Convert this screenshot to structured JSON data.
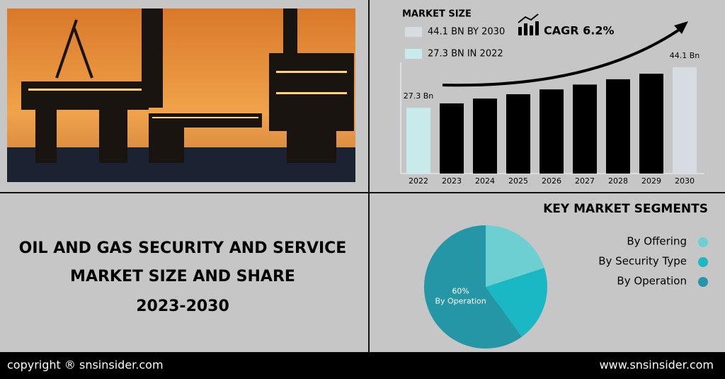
{
  "header": {
    "title_lines": [
      "OIL AND GAS SECURITY AND SERVICE",
      "MARKET SIZE AND SHARE",
      "2023-2030"
    ]
  },
  "footer": {
    "left": "copyright ® snsinsider.com",
    "right": "www.snsinsider.com"
  },
  "chart_data": [
    {
      "type": "bar",
      "title": "MARKET SIZE",
      "annotation": "CAGR 6.2%",
      "legend": [
        {
          "label": "44.1 BN BY 2030",
          "color": "#d6dce2"
        },
        {
          "label": "27.3 BN IN 2022",
          "color": "#c8eaea"
        }
      ],
      "categories": [
        "2022",
        "2023",
        "2024",
        "2025",
        "2026",
        "2027",
        "2028",
        "2029",
        "2030"
      ],
      "values": [
        27.3,
        29.1,
        31.1,
        32.9,
        34.9,
        36.9,
        39.1,
        41.4,
        44.1
      ],
      "value_labels": [
        "27.3 Bn",
        null,
        null,
        null,
        null,
        null,
        null,
        null,
        "44.1 Bn"
      ],
      "colors": [
        "#c8eaea",
        "#000000",
        "#000000",
        "#000000",
        "#000000",
        "#000000",
        "#000000",
        "#000000",
        "#d6dce2"
      ],
      "ylim": [
        0,
        47
      ]
    },
    {
      "type": "pie",
      "title": "KEY MARKET SEGMENTS",
      "categories": [
        "By Offering",
        "By Security Type",
        "By Operation"
      ],
      "values": [
        20,
        20,
        60
      ],
      "value_labels": [
        null,
        null,
        "60%"
      ],
      "colors": [
        "#6dcfd2",
        "#1ab8c4",
        "#2596a6"
      ]
    }
  ]
}
